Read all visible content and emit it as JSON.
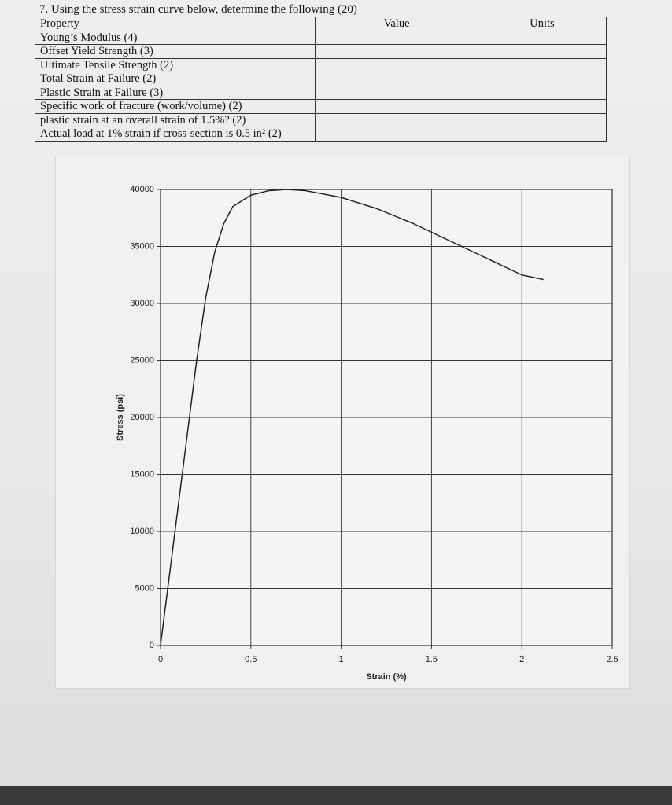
{
  "question": "7. Using the stress strain curve below, determine the following (20)",
  "table": {
    "header": [
      "Property",
      "Value",
      "Units"
    ],
    "rows": [
      "Young’s Modulus (4)",
      "Offset Yield Strength (3)",
      "Ultimate Tensile Strength (2)",
      "Total Strain at Failure (2)",
      "Plastic Strain at Failure (3)",
      "Specific work of fracture (work/volume) (2)",
      "plastic strain at an overall strain of 1.5%? (2)",
      "Actual load at 1% strain if cross-section is 0.5 in² (2)"
    ]
  },
  "chart_data": {
    "type": "line",
    "x_label": "Strain (%)",
    "y_label": "Stress (psi)",
    "x": [
      0,
      0.1,
      0.2,
      0.25,
      0.3,
      0.35,
      0.4,
      0.5,
      0.6,
      0.7,
      0.8,
      1.0,
      1.2,
      1.4,
      1.6,
      1.8,
      2.0,
      2.12
    ],
    "values": [
      0,
      12500,
      25000,
      30500,
      34500,
      37000,
      38500,
      39500,
      39900,
      40000,
      39900,
      39300,
      38300,
      37000,
      35500,
      34000,
      32500,
      32100
    ],
    "color": "#222222",
    "xlim": [
      0,
      2.5
    ],
    "ylim": [
      0,
      40000
    ],
    "xticks": [
      0,
      0.5,
      1,
      1.5,
      2,
      2.5
    ],
    "yticks": [
      0,
      5000,
      10000,
      15000,
      20000,
      25000,
      30000,
      35000,
      40000
    ],
    "grid": true
  }
}
